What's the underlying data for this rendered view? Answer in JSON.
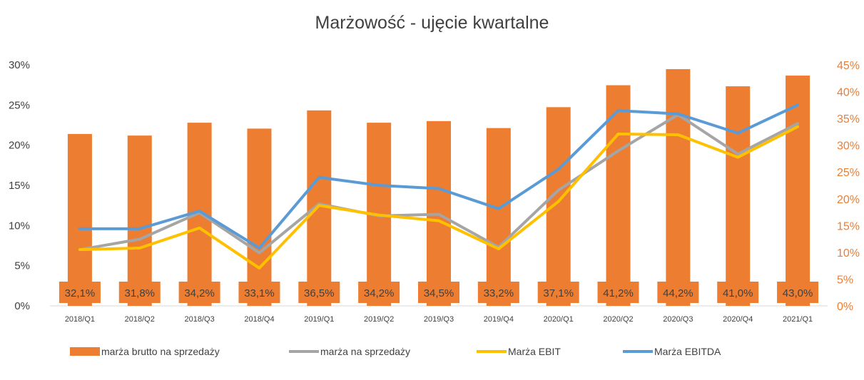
{
  "chart_data": {
    "type": "bar",
    "title": "Marżowość - ujęcie kwartalne",
    "categories": [
      "2018/Q1",
      "2018/Q2",
      "2018/Q3",
      "2018/Q4",
      "2019/Q1",
      "2019/Q2",
      "2019/Q3",
      "2019/Q4",
      "2020/Q1",
      "2020/Q2",
      "2020/Q3",
      "2020/Q4",
      "2021/Q1"
    ],
    "bar_series": {
      "name": "marża brutto na sprzedaży",
      "axis": "right",
      "color": "#ED7D31",
      "values": [
        32.1,
        31.8,
        34.2,
        33.1,
        36.5,
        34.2,
        34.5,
        33.2,
        37.1,
        41.2,
        44.2,
        41.0,
        43.0
      ],
      "labels": [
        "32,1%",
        "31,8%",
        "34,2%",
        "33,1%",
        "36,5%",
        "34,2%",
        "34,5%",
        "33,2%",
        "37,1%",
        "41,2%",
        "44,2%",
        "41,0%",
        "43,0%"
      ]
    },
    "line_series": [
      {
        "name": "marża na sprzedaży",
        "axis": "left",
        "color": "#A5A5A5",
        "values": [
          7.0,
          8.3,
          11.6,
          6.6,
          12.7,
          11.2,
          11.4,
          7.3,
          14.4,
          19.3,
          23.8,
          18.9,
          22.7
        ]
      },
      {
        "name": "Marża EBIT",
        "axis": "left",
        "color": "#FFC000",
        "values": [
          7.0,
          7.2,
          9.7,
          4.7,
          12.5,
          11.3,
          10.6,
          7.1,
          13.0,
          21.4,
          21.3,
          18.5,
          22.3
        ]
      },
      {
        "name": "Marża EBITDA",
        "axis": "left",
        "color": "#5B9BD5",
        "values": [
          9.6,
          9.6,
          11.8,
          7.2,
          16.0,
          15.0,
          14.6,
          12.1,
          17.0,
          24.3,
          23.9,
          21.5,
          25.0
        ]
      }
    ],
    "y_left": {
      "ylim": [
        0,
        30
      ],
      "ticks": [
        "0%",
        "5%",
        "10%",
        "15%",
        "20%",
        "25%",
        "30%"
      ]
    },
    "y_right": {
      "ylim": [
        0,
        45
      ],
      "ticks": [
        "0%",
        "5%",
        "10%",
        "15%",
        "20%",
        "25%",
        "30%",
        "35%",
        "40%",
        "45%"
      ]
    },
    "legend_position": "bottom",
    "grid": false
  }
}
